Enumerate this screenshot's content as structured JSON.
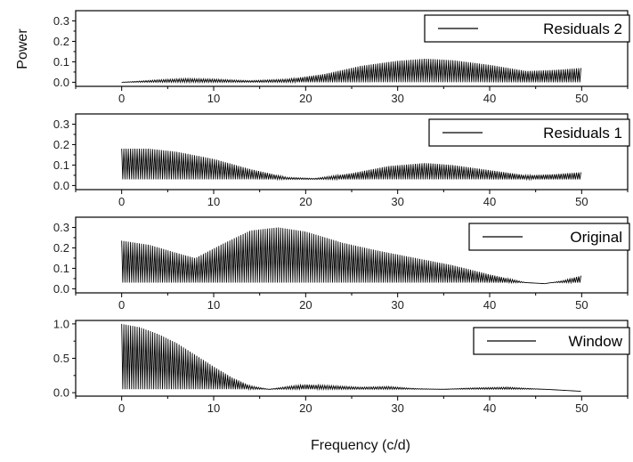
{
  "chart_data": [
    {
      "type": "line",
      "series": [
        {
          "name": "Residuals 2"
        }
      ],
      "ylabel": "Power",
      "xlim": [
        -5,
        55
      ],
      "ylim": [
        -0.02,
        0.35
      ],
      "xticks": [
        "0",
        "10",
        "20",
        "30",
        "40",
        "50"
      ],
      "yticks": [
        "0.0",
        "0.1",
        "0.2",
        "0.3"
      ],
      "envelope": {
        "x": [
          0,
          4,
          7,
          10,
          14,
          18,
          22,
          26,
          30,
          33,
          36,
          40,
          44,
          47,
          50
        ],
        "y": [
          0.0,
          0.012,
          0.018,
          0.015,
          0.008,
          0.015,
          0.04,
          0.08,
          0.105,
          0.115,
          0.108,
          0.085,
          0.055,
          0.06,
          0.07
        ]
      },
      "floor": 0.0,
      "legend_position": "top-right"
    },
    {
      "type": "line",
      "series": [
        {
          "name": "Residuals 1"
        }
      ],
      "xlim": [
        -5,
        55
      ],
      "ylim": [
        -0.02,
        0.35
      ],
      "xticks": [
        "0",
        "10",
        "20",
        "30",
        "40",
        "50"
      ],
      "yticks": [
        "0.0",
        "0.1",
        "0.2",
        "0.3"
      ],
      "envelope": {
        "x": [
          0,
          3,
          6,
          10,
          14,
          18,
          21,
          25,
          29,
          33,
          36,
          40,
          44,
          47,
          50
        ],
        "y": [
          0.18,
          0.18,
          0.165,
          0.13,
          0.08,
          0.04,
          0.035,
          0.06,
          0.095,
          0.11,
          0.1,
          0.075,
          0.05,
          0.055,
          0.065
        ]
      },
      "floor": 0.03,
      "legend_position": "top-right"
    },
    {
      "type": "line",
      "series": [
        {
          "name": "Original"
        }
      ],
      "xlim": [
        -5,
        55
      ],
      "ylim": [
        -0.02,
        0.35
      ],
      "xticks": [
        "0",
        "10",
        "20",
        "30",
        "40",
        "50"
      ],
      "yticks": [
        "0.0",
        "0.1",
        "0.2",
        "0.3"
      ],
      "envelope": {
        "x": [
          0,
          3,
          6,
          8,
          11,
          14,
          17,
          20,
          24,
          28,
          32,
          36,
          40,
          44,
          46,
          48,
          50
        ],
        "y": [
          0.235,
          0.215,
          0.175,
          0.15,
          0.22,
          0.285,
          0.3,
          0.28,
          0.225,
          0.185,
          0.15,
          0.115,
          0.07,
          0.03,
          0.025,
          0.04,
          0.065
        ]
      },
      "floor": 0.03,
      "legend_position": "top-right"
    },
    {
      "type": "line",
      "series": [
        {
          "name": "Window"
        }
      ],
      "xlabel": "Frequency (c/d)",
      "xlim": [
        -5,
        55
      ],
      "ylim": [
        -0.05,
        1.05
      ],
      "xticks": [
        "0",
        "10",
        "20",
        "30",
        "40",
        "50"
      ],
      "yticks": [
        "0.0",
        "0.5",
        "1.0"
      ],
      "envelope": {
        "x": [
          0,
          2,
          4,
          6,
          8,
          10,
          12,
          14,
          16,
          18,
          20,
          23,
          26,
          29,
          32,
          35,
          38,
          42,
          46,
          50
        ],
        "y": [
          1.0,
          0.95,
          0.85,
          0.72,
          0.55,
          0.38,
          0.22,
          0.1,
          0.05,
          0.09,
          0.12,
          0.1,
          0.08,
          0.09,
          0.06,
          0.05,
          0.07,
          0.08,
          0.05,
          0.02
        ]
      },
      "floor": 0.05,
      "legend_position": "top-right"
    }
  ]
}
